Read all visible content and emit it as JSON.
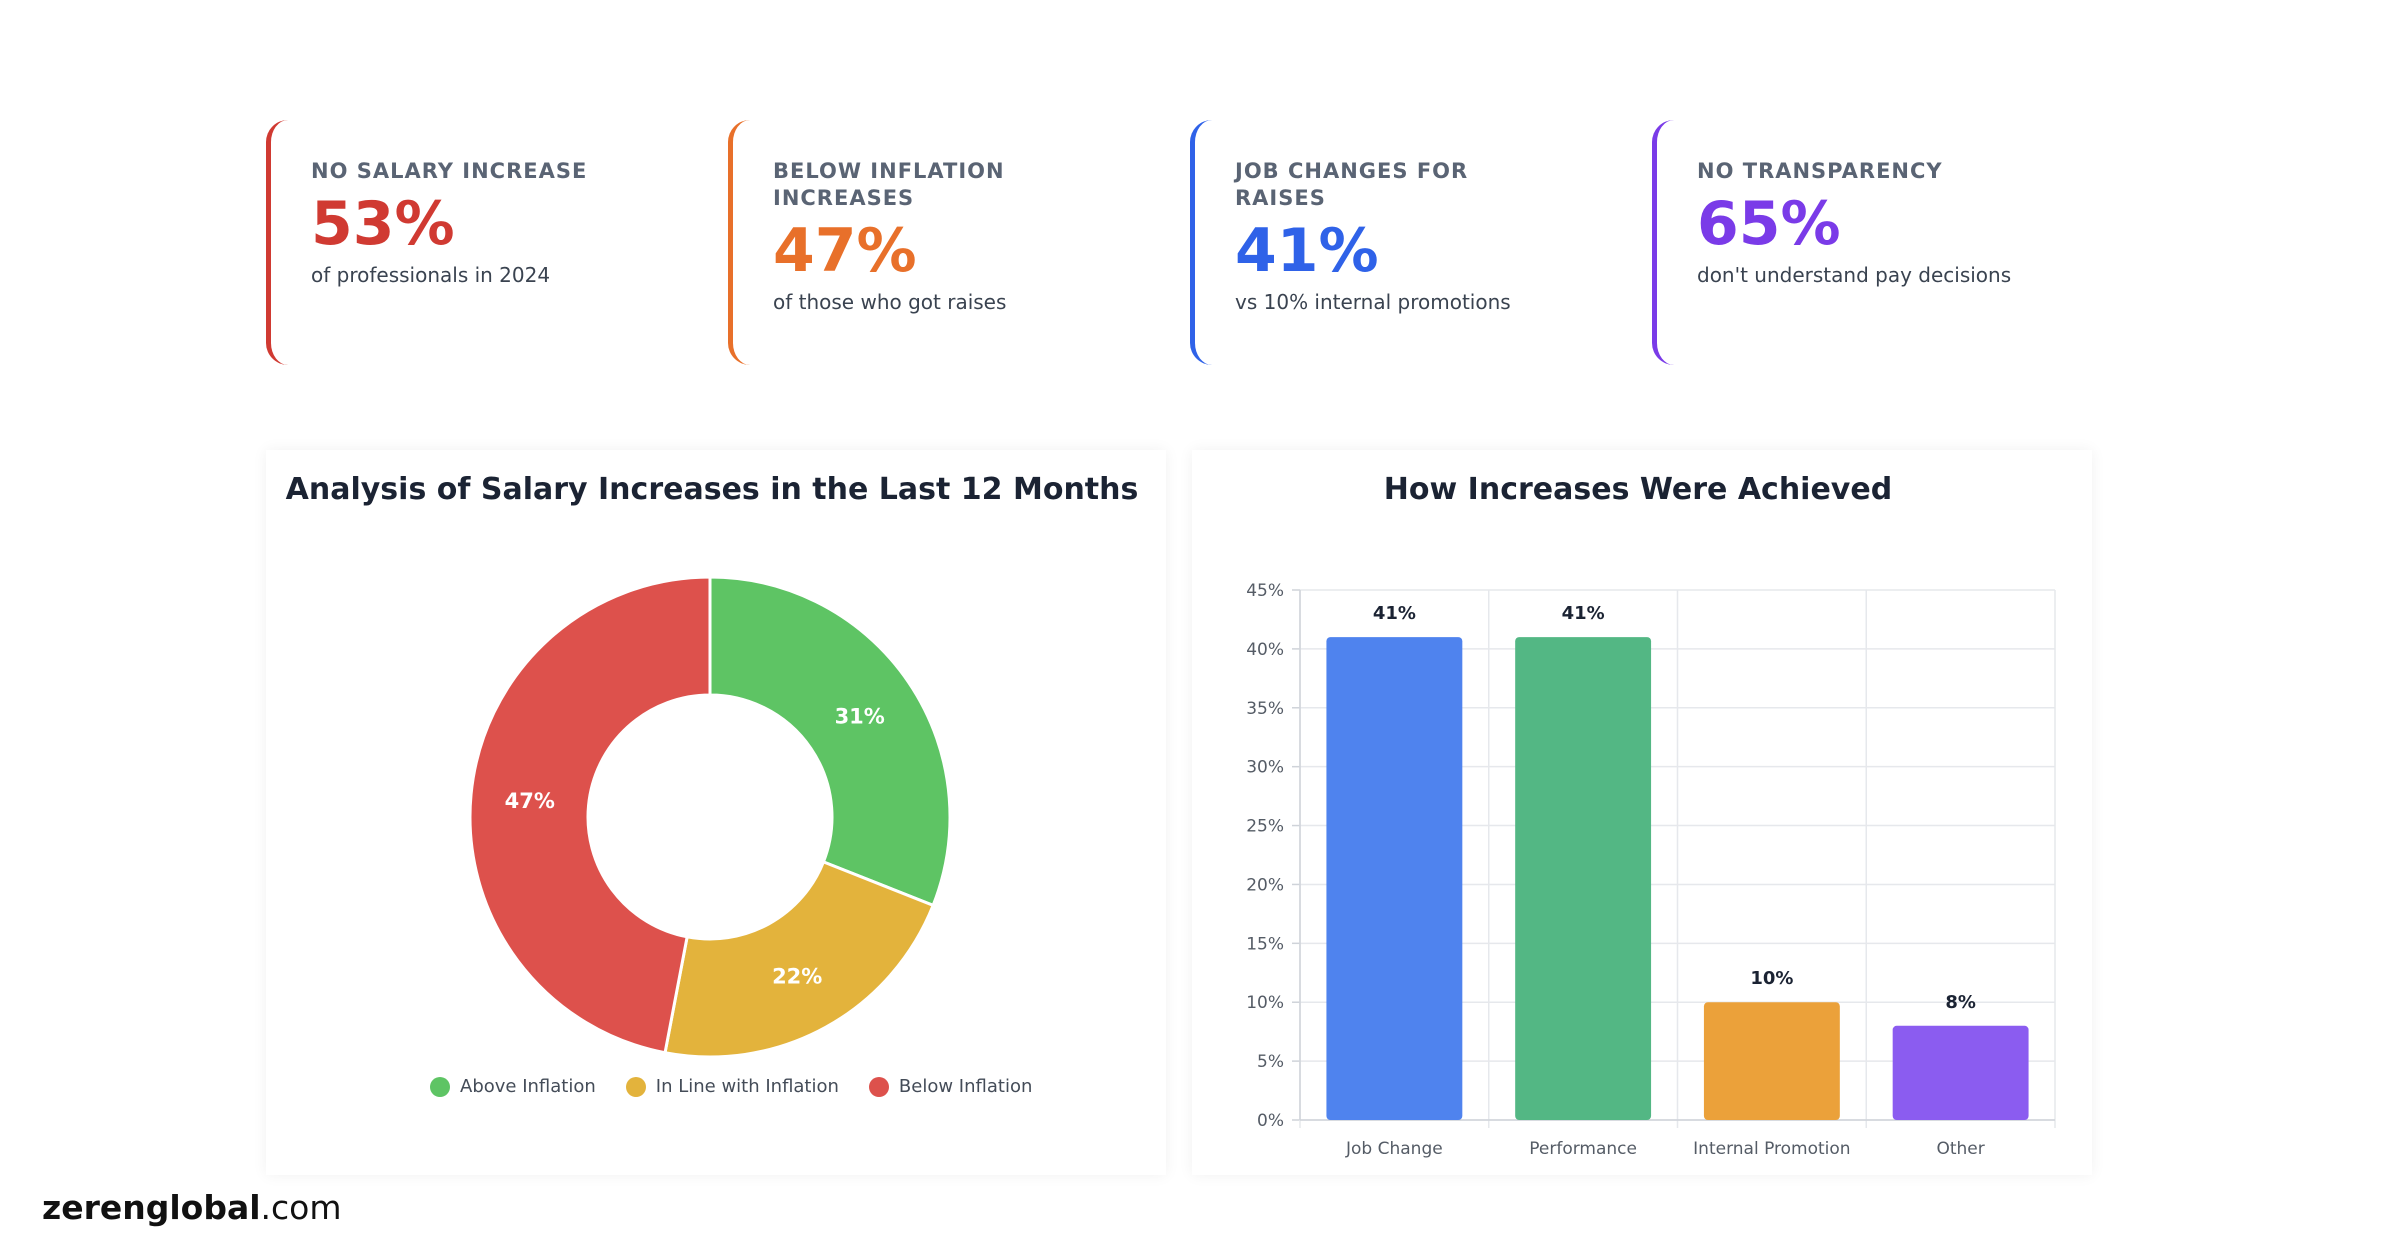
{
  "stats": [
    {
      "label": "NO SALARY INCREASE",
      "value": "53%",
      "desc": "of professionals in 2024",
      "color": "#d03a32"
    },
    {
      "label": "BELOW INFLATION INCREASES",
      "value": "47%",
      "desc": "of those who got raises",
      "color": "#e8702a"
    },
    {
      "label": "JOB CHANGES FOR RAISES",
      "value": "41%",
      "desc": "vs 10% internal promotions",
      "color": "#2f62e8"
    },
    {
      "label": "NO TRANSPARENCY",
      "value": "65%",
      "desc": "don't understand pay decisions",
      "color": "#7a3be8"
    }
  ],
  "chart_data": [
    {
      "type": "pie",
      "title": "Analysis of Salary Increases in the Last 12 Months",
      "categories": [
        "Above Inflation",
        "In Line with Inflation",
        "Below Inflation"
      ],
      "values": [
        31,
        22,
        47
      ],
      "labels": [
        "31%",
        "22%",
        "47%"
      ],
      "colors": [
        "#5ec464",
        "#e3b33c",
        "#dd514c"
      ],
      "donut": true,
      "legend": "bottom"
    },
    {
      "type": "bar",
      "title": "How Increases Were Achieved",
      "categories": [
        "Job Change",
        "Performance",
        "Internal Promotion",
        "Other"
      ],
      "values": [
        41,
        41,
        10,
        8
      ],
      "labels": [
        "41%",
        "41%",
        "10%",
        "8%"
      ],
      "colors": [
        "#4f83ee",
        "#53b784",
        "#eba13a",
        "#8b5cf0"
      ],
      "ylim": [
        0,
        45
      ],
      "yticks": [
        "0%",
        "5%",
        "10%",
        "15%",
        "20%",
        "25%",
        "30%",
        "35%",
        "40%",
        "45%"
      ],
      "grid": true
    }
  ],
  "footer": {
    "brand_bold": "zerenglobal",
    "brand_rest": ".com"
  }
}
